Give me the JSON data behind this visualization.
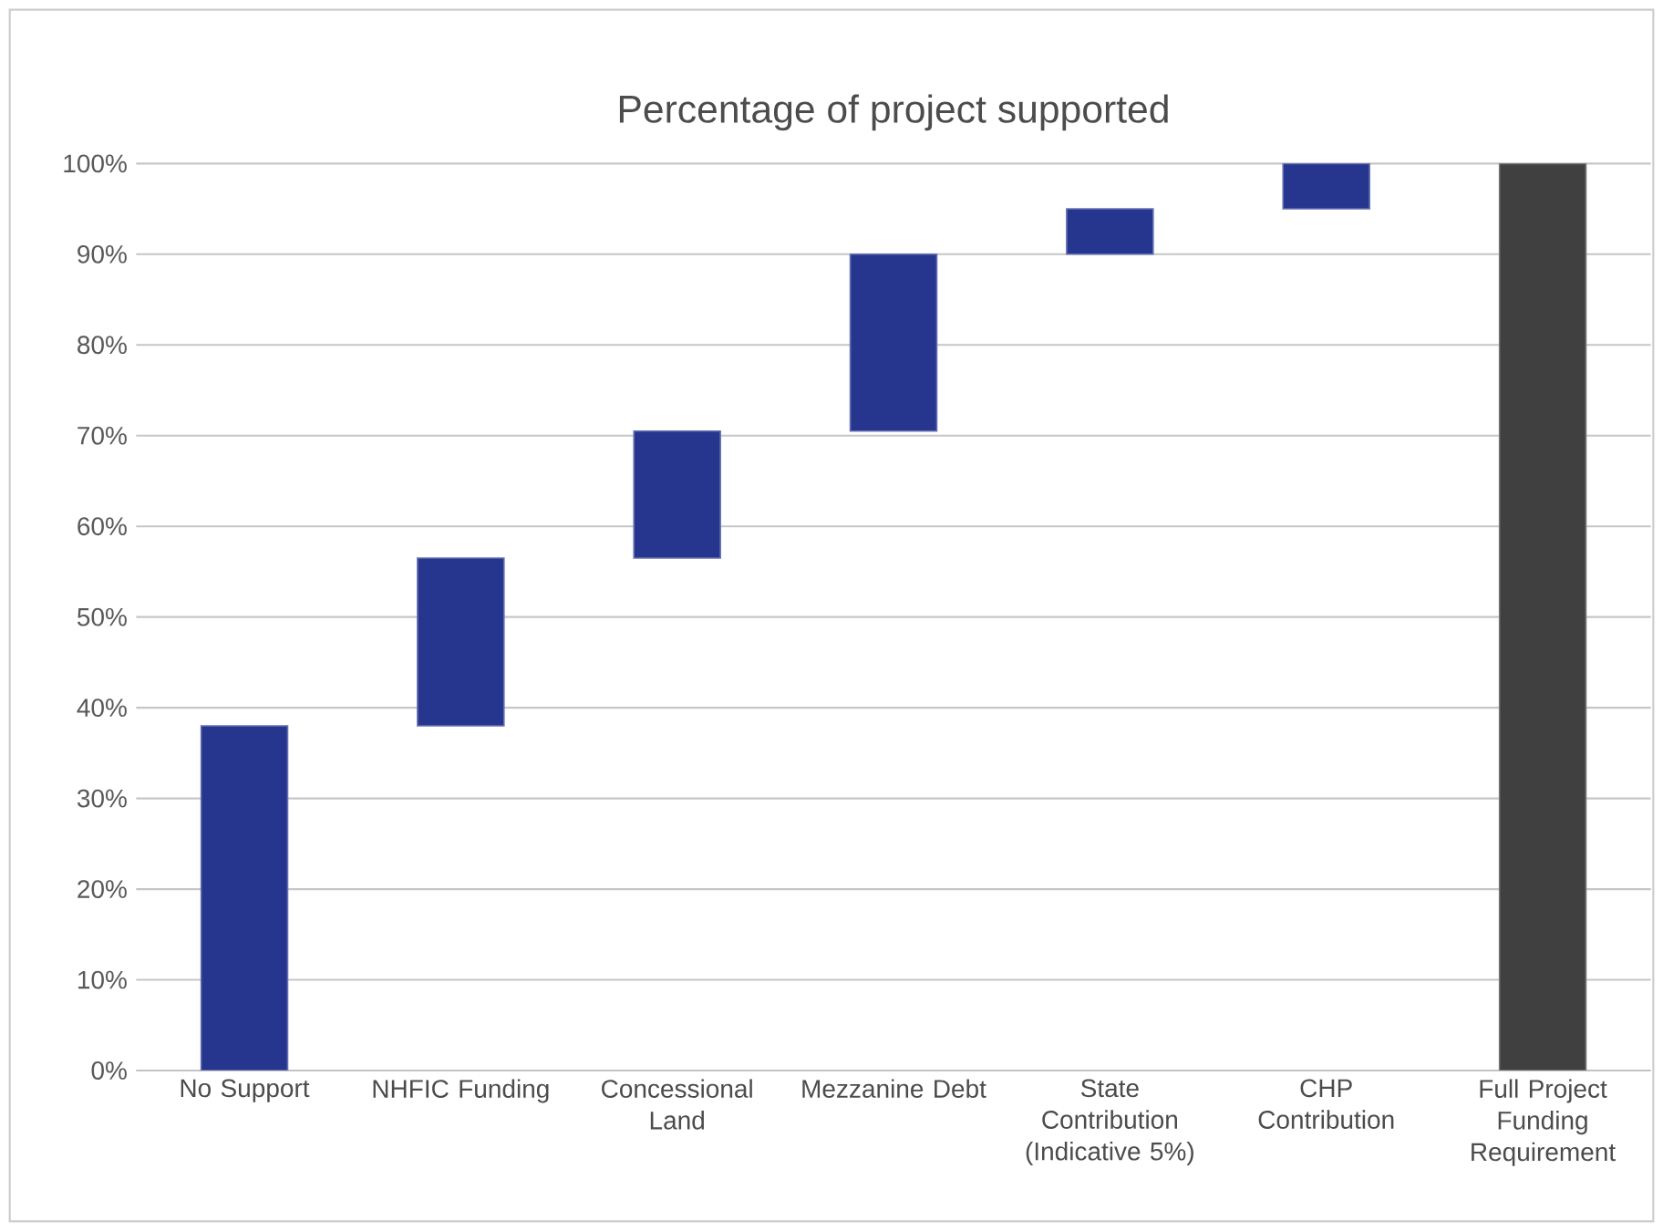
{
  "chart_data": {
    "type": "bar",
    "title": "Percentage of project supported",
    "categories": [
      "No Support",
      "NHFIC Funding",
      "Concessional Land",
      "Mezzanine Debt",
      "State Contribution (Indicative 5%)",
      "CHP Contribution",
      "Full Project Funding Requirement"
    ],
    "base": [
      0,
      38,
      56.5,
      70.5,
      90,
      95,
      0
    ],
    "values": [
      38,
      18.5,
      14,
      19.5,
      5,
      5,
      100
    ],
    "colors": [
      "#26368f",
      "#26368f",
      "#26368f",
      "#26368f",
      "#26368f",
      "#26368f",
      "#404040"
    ],
    "ylim": [
      0,
      100
    ],
    "yticks": [
      {
        "value": 0,
        "label": "0%"
      },
      {
        "value": 10,
        "label": "10%"
      },
      {
        "value": 20,
        "label": "20%"
      },
      {
        "value": 30,
        "label": "30%"
      },
      {
        "value": 40,
        "label": "40%"
      },
      {
        "value": 50,
        "label": "50%"
      },
      {
        "value": 60,
        "label": "60%"
      },
      {
        "value": 70,
        "label": "70%"
      },
      {
        "value": 80,
        "label": "80%"
      },
      {
        "value": 90,
        "label": "90%"
      },
      {
        "value": 100,
        "label": "100%"
      }
    ],
    "grid": "y"
  }
}
